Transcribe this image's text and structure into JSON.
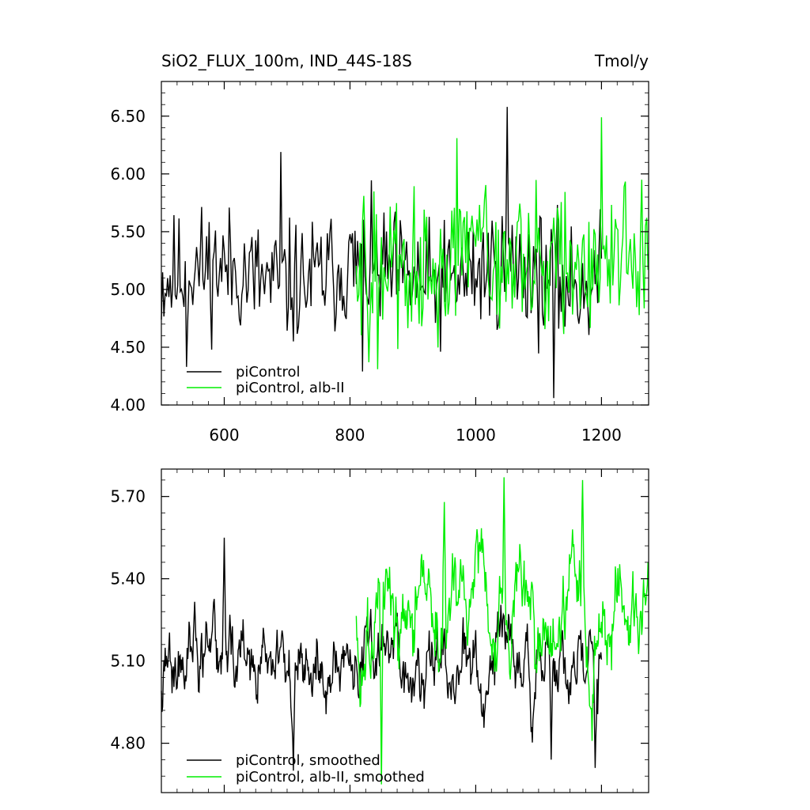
{
  "chart_data": [
    {
      "type": "line",
      "title": "SiO2_FLUX_100m, IND_44S-18S",
      "units": "Tmol/y",
      "xlim": [
        500,
        1275
      ],
      "ylim": [
        4.0,
        6.8
      ],
      "y_ticks": [
        4.0,
        4.5,
        5.0,
        5.5,
        6.0,
        6.5
      ],
      "y_tick_labels": [
        "4.00",
        "4.50",
        "5.00",
        "5.50",
        "6.00",
        "6.50"
      ],
      "x_ticks": [
        600,
        800,
        1000,
        1200
      ],
      "x_tick_labels": [
        "600",
        "800",
        "1000",
        "1200"
      ],
      "legend_position": "bottom-left",
      "series": [
        {
          "name": "piControl",
          "color": "#000000",
          "x_range": [
            500,
            1200
          ],
          "mean": 5.12,
          "amplitude": 0.33,
          "extremes": [
            [
              690,
              6.19
            ],
            [
              1050,
              6.58
            ],
            [
              1125,
              4.06
            ],
            [
              540,
              4.33
            ],
            [
              820,
              4.29
            ]
          ]
        },
        {
          "name": "piControl, alb-II",
          "color": "#00ee00",
          "x_range": [
            810,
            1275
          ],
          "mean": 5.25,
          "amplitude": 0.38,
          "extremes": [
            [
              1200,
              6.49
            ],
            [
              970,
              6.31
            ],
            [
              845,
              4.31
            ],
            [
              830,
              4.37
            ]
          ]
        }
      ]
    },
    {
      "type": "line",
      "title": "",
      "xlim": [
        500,
        1275
      ],
      "ylim": [
        4.62,
        5.8
      ],
      "y_ticks": [
        4.8,
        5.1,
        5.4,
        5.7
      ],
      "y_tick_labels": [
        "4.80",
        "5.10",
        "5.40",
        "5.70"
      ],
      "x_ticks": [
        600,
        800,
        1000,
        1200
      ],
      "x_tick_labels": [],
      "legend_position": "bottom-left",
      "series": [
        {
          "name": "piControl, smoothed",
          "color": "#000000",
          "x_range": [
            500,
            1200
          ],
          "mean": 5.08,
          "amplitude": 0.14,
          "extremes": [
            [
              600,
              5.55
            ],
            [
              710,
              4.7
            ],
            [
              1190,
              4.71
            ],
            [
              1120,
              4.74
            ]
          ]
        },
        {
          "name": "piControl, alb-II, smoothed",
          "color": "#00ee00",
          "x_range": [
            810,
            1275
          ],
          "mean": 5.24,
          "amplitude": 0.18,
          "extremes": [
            [
              1045,
              5.77
            ],
            [
              1170,
              5.76
            ],
            [
              950,
              5.68
            ],
            [
              850,
              4.65
            ]
          ]
        }
      ]
    }
  ]
}
